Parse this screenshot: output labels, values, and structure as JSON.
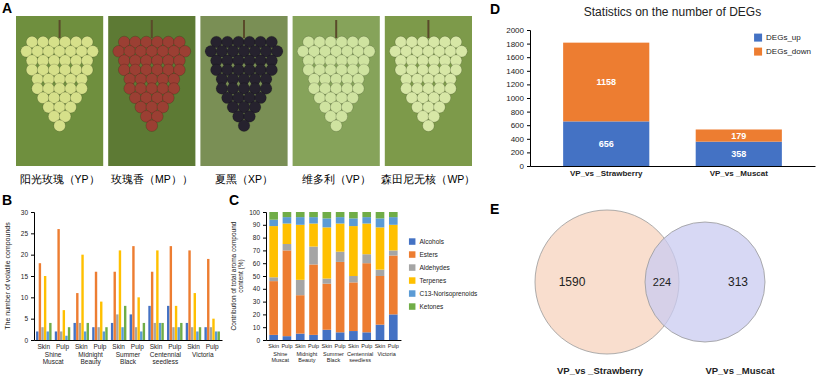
{
  "photo_panel": {
    "letter": "A",
    "labels": [
      "阳光玫瑰（YP）",
      "玫瑰香（MP））",
      "夏黑（XP）",
      "维多利（VP）",
      "森田尼无核（WP）"
    ]
  },
  "chart_data": [
    {
      "letter": "B",
      "type": "bar",
      "categories": [
        "Skin",
        "Pulp",
        "Skin",
        "Pulp",
        "Skin",
        "Pulp",
        "Skin",
        "Pulp",
        "Skin",
        "Pulp"
      ],
      "groups": [
        "Shine Muscat",
        "Midnight Beauty",
        "Summer Black",
        "Centennial seedless",
        "Victoria"
      ],
      "ylabel": "The number of volatile compounds",
      "ylim": [
        0,
        30
      ],
      "yticks": [
        0,
        5,
        10,
        15,
        20,
        25,
        30
      ],
      "series": [
        {
          "color": "#4472c4",
          "values": [
            2,
            2,
            4,
            3,
            4,
            6,
            8,
            8,
            4,
            3
          ]
        },
        {
          "color": "#ed7d31",
          "values": [
            18,
            26,
            11,
            16,
            16,
            22,
            16,
            22,
            21,
            19
          ]
        },
        {
          "color": "#a5a5a5",
          "values": [
            3,
            2,
            4,
            3,
            6,
            3,
            4,
            3,
            3,
            3
          ]
        },
        {
          "color": "#ffc000",
          "values": [
            15,
            7,
            20,
            9,
            21,
            10,
            21,
            8,
            11,
            5
          ]
        },
        {
          "color": "#5b9bd5",
          "values": [
            2,
            1,
            2,
            2,
            3,
            2,
            4,
            3,
            2,
            2
          ]
        },
        {
          "color": "#70ad47",
          "values": [
            4,
            3,
            4,
            3,
            8,
            4,
            4,
            4,
            3,
            2
          ]
        }
      ]
    },
    {
      "letter": "C",
      "type": "bar",
      "stacked": true,
      "legend": "right",
      "categories": [
        "Skin",
        "Pulp",
        "Skin",
        "Pulp",
        "Skin",
        "Pulp",
        "Skin",
        "Pulp",
        "Skin",
        "Pulp"
      ],
      "groups": [
        "Shine Muscat",
        "Midnight Beauty",
        "Summer Black",
        "Centennial seedless",
        "Victoria"
      ],
      "ylabel": "Contribution of total aroma compound content (%)",
      "ylim": [
        0,
        100
      ],
      "yticks": [
        0,
        10,
        20,
        30,
        40,
        50,
        60,
        70,
        80,
        90,
        100
      ],
      "series": [
        {
          "name": "Alcohols",
          "color": "#4472c4",
          "values": [
            4,
            3,
            5,
            4,
            8,
            6,
            7,
            6,
            12,
            20
          ]
        },
        {
          "name": "Esters",
          "color": "#ed7d31",
          "values": [
            42,
            67,
            30,
            55,
            36,
            55,
            38,
            54,
            38,
            46
          ]
        },
        {
          "name": "Aldehydes",
          "color": "#a5a5a5",
          "values": [
            3,
            5,
            12,
            14,
            4,
            8,
            5,
            7,
            5,
            4
          ]
        },
        {
          "name": "Terpenes",
          "color": "#ffc000",
          "values": [
            40,
            16,
            43,
            18,
            40,
            22,
            39,
            24,
            33,
            20
          ]
        },
        {
          "name": "C13-Norisoprenoids",
          "color": "#5b9bd5",
          "values": [
            5,
            5,
            6,
            5,
            7,
            5,
            6,
            5,
            7,
            6
          ]
        },
        {
          "name": "Ketones",
          "color": "#70ad47",
          "values": [
            6,
            4,
            4,
            4,
            5,
            4,
            5,
            4,
            5,
            4
          ]
        }
      ]
    },
    {
      "letter": "D",
      "type": "bar",
      "stacked": true,
      "legend": "top-right",
      "data_labels": true,
      "title": "Statistics on the number of DEGs",
      "categories": [
        "VP_vs _Strawberry",
        "VP_vs _Muscat"
      ],
      "ylim": [
        0,
        2000
      ],
      "yticks": [
        0,
        200,
        400,
        600,
        800,
        1000,
        1200,
        1400,
        1600,
        1800,
        2000
      ],
      "series": [
        {
          "name": "DEGs_up",
          "color": "#4472c4",
          "values": [
            656,
            358
          ]
        },
        {
          "name": "DEGs_down",
          "color": "#ed7d31",
          "values": [
            1158,
            179
          ]
        }
      ]
    },
    {
      "letter": "E",
      "type": "venn",
      "sets": [
        {
          "name": "VP_vs _Strawberry",
          "color": "#f7d3bd",
          "value": 1590
        },
        {
          "name": "VP_vs _Muscat",
          "color": "#c9cbf0",
          "value": 313
        }
      ],
      "intersection": 224
    }
  ]
}
